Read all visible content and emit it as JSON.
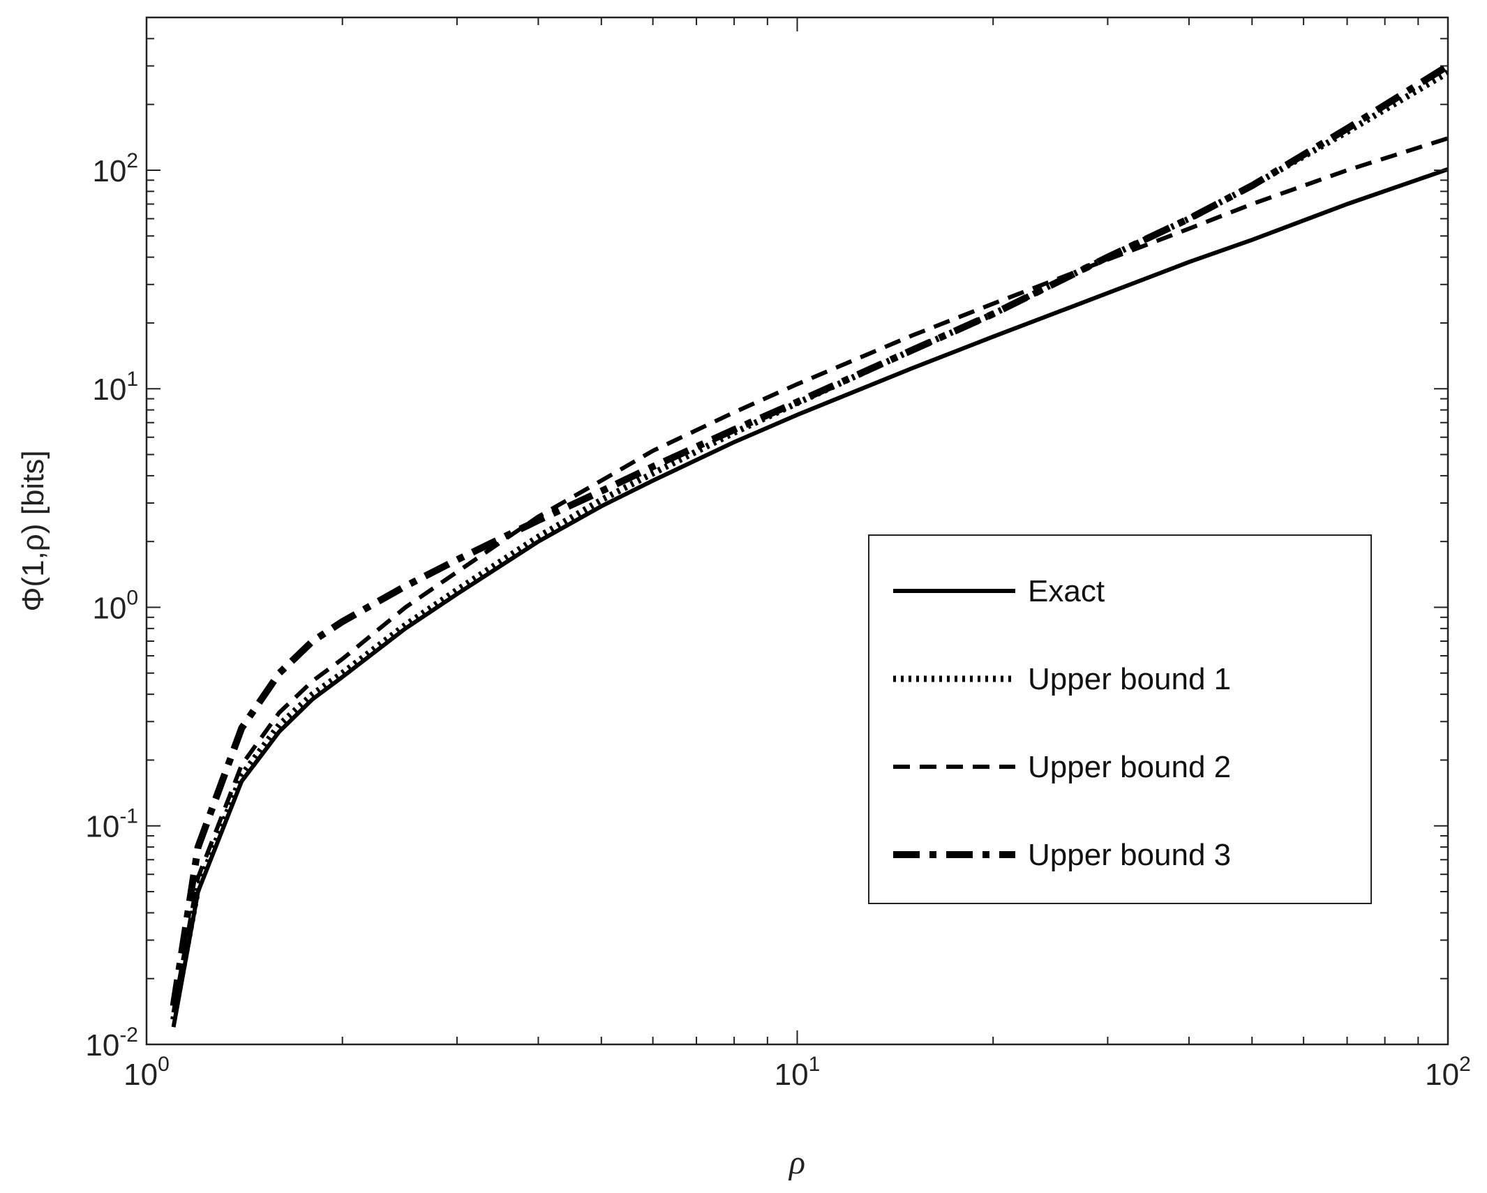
{
  "chart_data": {
    "type": "line",
    "title": "",
    "xlabel": "ρ",
    "ylabel": "Φ(1,ρ)   [bits]",
    "xscale": "log",
    "yscale": "log",
    "xlim": [
      1,
      100
    ],
    "ylim": [
      0.01,
      500
    ],
    "x_ticks": [
      {
        "base": "10",
        "exp": "0",
        "value": 1
      },
      {
        "base": "10",
        "exp": "1",
        "value": 10
      },
      {
        "base": "10",
        "exp": "2",
        "value": 100
      }
    ],
    "y_ticks": [
      {
        "base": "10",
        "exp": "-2",
        "value": 0.01
      },
      {
        "base": "10",
        "exp": "-1",
        "value": 0.1
      },
      {
        "base": "10",
        "exp": "0",
        "value": 1
      },
      {
        "base": "10",
        "exp": "1",
        "value": 10
      },
      {
        "base": "10",
        "exp": "2",
        "value": 100
      }
    ],
    "grid": false,
    "legend_position": "center-right",
    "colors": {
      "line": "#000000",
      "axis": "#222222"
    },
    "series": [
      {
        "name": "Exact",
        "style": "solid",
        "x": [
          1.1,
          1.2,
          1.4,
          1.6,
          1.8,
          2,
          2.5,
          3,
          4,
          5,
          6,
          8,
          10,
          15,
          20,
          30,
          40,
          50,
          70,
          100
        ],
        "y": [
          0.012,
          0.05,
          0.16,
          0.27,
          0.38,
          0.48,
          0.8,
          1.15,
          2.0,
          2.9,
          3.8,
          5.7,
          7.6,
          12.4,
          17.3,
          27.4,
          38,
          48,
          70,
          101
        ]
      },
      {
        "name": "Upper bound 1",
        "style": "dotted",
        "x": [
          1.1,
          1.2,
          1.4,
          1.6,
          1.8,
          2,
          2.5,
          3,
          4,
          5,
          6,
          8,
          10,
          15,
          20,
          30,
          40,
          50,
          70,
          100
        ],
        "y": [
          0.013,
          0.052,
          0.17,
          0.29,
          0.4,
          0.5,
          0.83,
          1.2,
          2.1,
          3.1,
          4.1,
          6.3,
          8.6,
          15,
          22,
          40,
          60,
          85,
          150,
          280
        ]
      },
      {
        "name": "Upper bound 2",
        "style": "dashed",
        "x": [
          1.1,
          1.2,
          1.4,
          1.6,
          1.8,
          2,
          2.5,
          3,
          4,
          5,
          6,
          8,
          10,
          15,
          20,
          30,
          40,
          50,
          70,
          100
        ],
        "y": [
          0.014,
          0.058,
          0.19,
          0.33,
          0.46,
          0.58,
          1.0,
          1.45,
          2.6,
          3.8,
          5.2,
          7.8,
          10.5,
          17.5,
          24.5,
          39,
          54,
          70,
          100,
          140
        ]
      },
      {
        "name": "Upper bound 3",
        "style": "dashdot",
        "x": [
          1.1,
          1.2,
          1.4,
          1.6,
          1.8,
          2,
          2.5,
          3,
          4,
          5,
          6,
          8,
          10,
          15,
          20,
          30,
          40,
          50,
          70,
          100
        ],
        "y": [
          0.015,
          0.08,
          0.28,
          0.5,
          0.7,
          0.86,
          1.25,
          1.65,
          2.5,
          3.4,
          4.4,
          6.5,
          8.7,
          15,
          22,
          40,
          60,
          85,
          155,
          300
        ]
      }
    ]
  }
}
